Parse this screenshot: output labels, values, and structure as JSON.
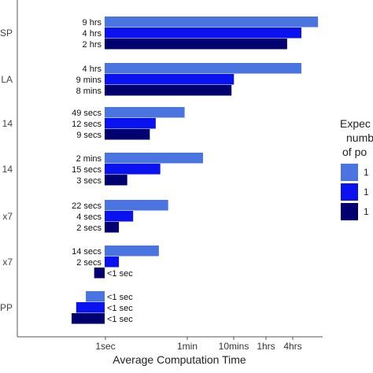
{
  "chart_data": {
    "type": "bar",
    "orientation": "horizontal",
    "x_scale": "log",
    "xlabel": "Average Computation Time",
    "x_ticks": [
      "1sec",
      "1min",
      "10mins",
      "1hrs",
      "4hrs"
    ],
    "x_tick_seconds": [
      1,
      60,
      600,
      3600,
      14400
    ],
    "xlim_seconds": [
      0.08,
      40000
    ],
    "grid": false,
    "legend_position": "right",
    "legend_title": [
      "Expec",
      "numb",
      "of po"
    ],
    "legend_labels": [
      "1",
      "1",
      "1"
    ],
    "category_labels": [
      "SP",
      "LA",
      "14",
      "14",
      "x7",
      "x7",
      "PP"
    ],
    "series_colors": [
      "#4a74e0",
      "#0a12f0",
      "#020070"
    ],
    "groups": [
      {
        "bars": [
          {
            "label": "9 hrs",
            "seconds": 32400
          },
          {
            "label": "4 hrs",
            "seconds": 14400
          },
          {
            "label": "2 hrs",
            "seconds": 7200
          }
        ]
      },
      {
        "bars": [
          {
            "label": "4 hrs",
            "seconds": 14400
          },
          {
            "label": "9 mins",
            "seconds": 540
          },
          {
            "label": "8 mins",
            "seconds": 480
          }
        ]
      },
      {
        "bars": [
          {
            "label": "49 secs",
            "seconds": 49
          },
          {
            "label": "12 secs",
            "seconds": 12
          },
          {
            "label": "9 secs",
            "seconds": 9
          }
        ]
      },
      {
        "bars": [
          {
            "label": "2 mins",
            "seconds": 120
          },
          {
            "label": "15 secs",
            "seconds": 15
          },
          {
            "label": "3 secs",
            "seconds": 3
          }
        ]
      },
      {
        "bars": [
          {
            "label": "22 secs",
            "seconds": 22
          },
          {
            "label": "4 secs",
            "seconds": 4
          },
          {
            "label": "2 secs",
            "seconds": 2
          }
        ]
      },
      {
        "bars": [
          {
            "label": "14 secs",
            "seconds": 14
          },
          {
            "label": "2 secs",
            "seconds": 2
          },
          {
            "label": "<1 sec",
            "seconds": 0.6
          }
        ]
      },
      {
        "bars": [
          {
            "label": "<1 sec",
            "seconds": 0.4
          },
          {
            "label": "<1 sec",
            "seconds": 0.25
          },
          {
            "label": "<1 sec",
            "seconds": 0.2
          }
        ]
      }
    ]
  }
}
